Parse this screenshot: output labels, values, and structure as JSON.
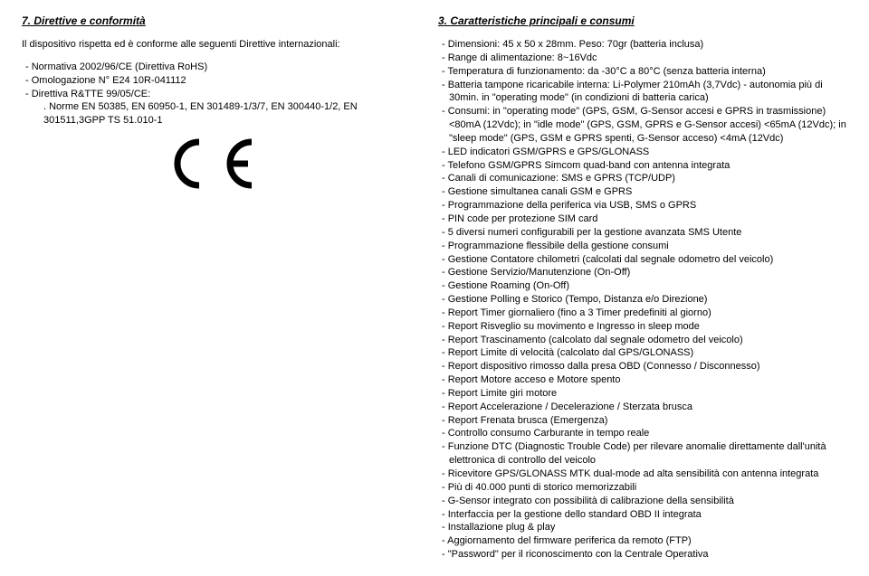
{
  "left": {
    "heading": "7. Direttive e conformità",
    "intro": "Il dispositivo rispetta ed è conforme alle seguenti Direttive internazionali:",
    "items": [
      "- Normativa 2002/96/CE (Direttiva RoHS)",
      "- Omologazione N° E24 10R-041112",
      "- Direttiva R&TTE 99/05/CE:"
    ],
    "norme": ". Norme EN 50385, EN 60950-1, EN 301489-1/3/7, EN 300440-1/2, EN 301511,3GPP TS 51.010-1"
  },
  "right": {
    "heading": "3. Caratteristiche principali e consumi",
    "lines": [
      "- Dimensioni: 45 x 50 x 28mm. Peso: 70gr (batteria inclusa)",
      "- Range di alimentazione: 8~16Vdc",
      "- Temperatura di funzionamento: da -30°C a 80°C (senza batteria interna)",
      "- Batteria tampone ricaricabile interna: Li-Polymer 210mAh (3,7Vdc) - autonomia più di 30min. in \"operating mode\" (in condizioni di batteria carica)",
      "- Consumi: in \"operating mode\" (GPS, GSM, G-Sensor accesi e GPRS in trasmissione) <80mA (12Vdc); in \"idle mode\" (GPS, GSM, GPRS e G-Sensor accesi) <65mA (12Vdc); in \"sleep mode\" (GPS, GSM e GPRS spenti, G-Sensor acceso) <4mA (12Vdc)",
      "- LED indicatori GSM/GPRS e GPS/GLONASS",
      "- Telefono GSM/GPRS Simcom quad-band con antenna integrata",
      "- Canali di comunicazione: SMS e GPRS (TCP/UDP)",
      "- Gestione simultanea canali GSM e GPRS",
      "- Programmazione della periferica via USB, SMS o GPRS",
      "- PIN code per protezione SIM card",
      "- 5 diversi numeri configurabili per la gestione avanzata SMS Utente",
      "- Programmazione flessibile della gestione consumi",
      "- Gestione Contatore chilometri (calcolati dal segnale odometro del veicolo)",
      "- Gestione Servizio/Manutenzione (On-Off)",
      "- Gestione Roaming (On-Off)",
      "- Gestione Polling e Storico (Tempo, Distanza e/o Direzione)",
      "- Report Timer giornaliero (fino a 3 Timer predefiniti al giorno)",
      "- Report Risveglio su movimento e Ingresso in sleep mode",
      "- Report Trascinamento (calcolato dal segnale odometro del veicolo)",
      "- Report Limite di velocità (calcolato dal GPS/GLONASS)",
      "- Report dispositivo rimosso dalla presa OBD (Connesso / Disconnesso)",
      "- Report Motore acceso e Motore spento",
      "- Report Limite giri motore",
      "- Report Accelerazione / Decelerazione / Sterzata brusca",
      "- Report Frenata brusca (Emergenza)",
      "- Controllo consumo Carburante in tempo reale",
      "- Funzione DTC (Diagnostic Trouble Code) per rilevare anomalie direttamente dall'unità elettronica di controllo del veicolo",
      "- Ricevitore GPS/GLONASS MTK dual-mode ad alta sensibilità con antenna integrata",
      "- Più di 40.000 punti di storico memorizzabili",
      "- G-Sensor integrato con possibilità di calibrazione della sensibilità",
      "- Interfaccia per la gestione dello standard OBD II integrata",
      "- Installazione plug & play",
      "- Aggiornamento del firmware periferica da remoto (FTP)",
      "- \"Password\" per il riconoscimento con la Centrale Operativa"
    ]
  },
  "colors": {
    "text": "#000000",
    "background": "#ffffff"
  }
}
